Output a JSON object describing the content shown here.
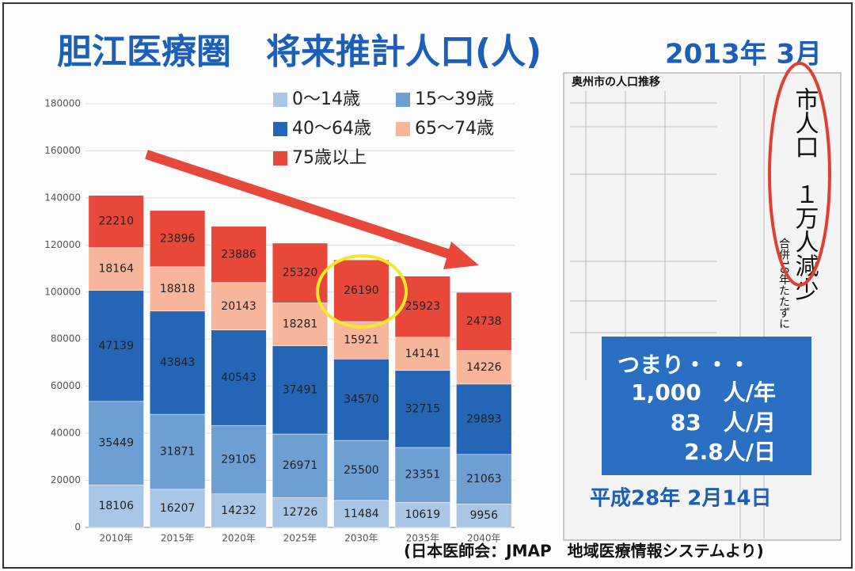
{
  "chart_data": {
    "type": "bar",
    "stacked": true,
    "title": "胆江医療圏　将来推計人口(人)",
    "subtitle": "2013年 3月",
    "categories": [
      "2010年",
      "2015年",
      "2020年",
      "2025年",
      "2030年",
      "2035年",
      "2040年"
    ],
    "series": [
      {
        "name": "0～14歳",
        "color": "#a9c6e6",
        "values": [
          18106,
          16207,
          14232,
          12726,
          11484,
          10619,
          9956
        ]
      },
      {
        "name": "15～39歳",
        "color": "#6d9fd3",
        "values": [
          35449,
          31871,
          29105,
          26971,
          25500,
          23351,
          21063
        ]
      },
      {
        "name": "40～64歳",
        "color": "#2466b5",
        "values": [
          47139,
          43843,
          40543,
          37491,
          34570,
          32715,
          29893
        ]
      },
      {
        "name": "65～74歳",
        "color": "#f7b69c",
        "values": [
          18164,
          18818,
          20143,
          18281,
          15921,
          14141,
          14226
        ]
      },
      {
        "name": "75歳以上",
        "color": "#e8483a",
        "values": [
          22210,
          23896,
          23886,
          25320,
          26190,
          25923,
          24738
        ]
      }
    ],
    "ylim": [
      0,
      180000
    ],
    "yticks": [
      0,
      20000,
      40000,
      60000,
      80000,
      100000,
      120000,
      140000,
      160000,
      180000
    ],
    "grid": true
  },
  "newspaper": {
    "title": "奥州市の人口推移",
    "headline": "市人口　１万人減少",
    "subheadline": "合併10年たたずに"
  },
  "callout": {
    "lines": [
      "つまり・・・",
      "1,000　人/年",
      "83　人/月",
      "2.8人/日"
    ]
  },
  "date": "平成28年 2月14日",
  "source": "(日本医師会：JMAP　地域医療情報システムより)"
}
